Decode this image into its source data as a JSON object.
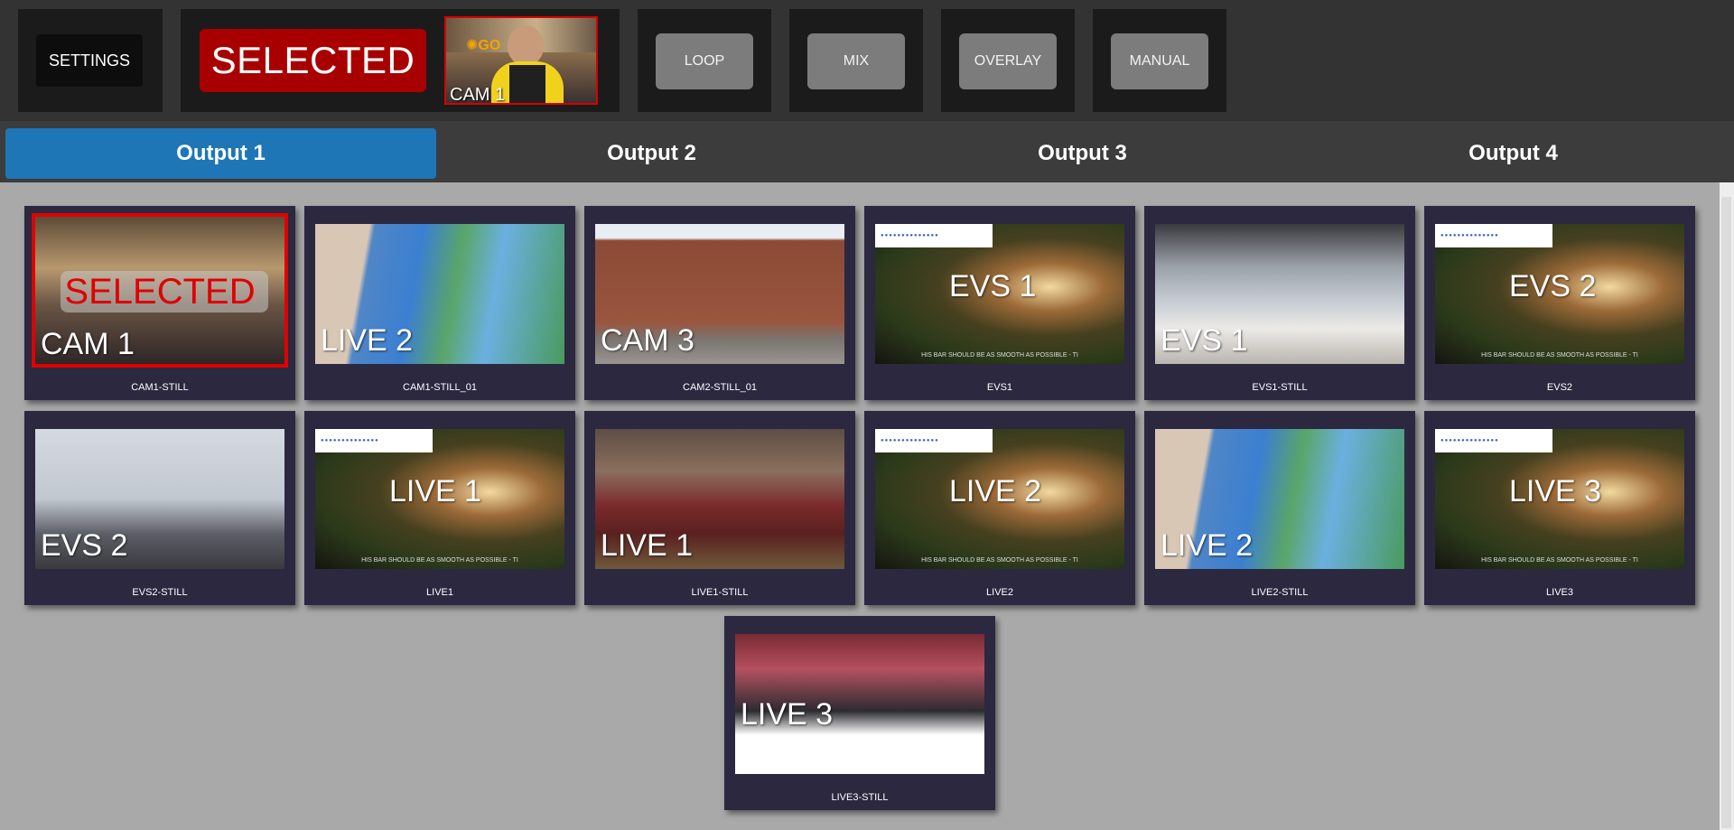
{
  "toolbar": {
    "settings_label": "SETTINGS",
    "selected_label": "SELECTED",
    "preview_label": "CAM 1",
    "modes": [
      "LOOP",
      "MIX",
      "OVERLAY",
      "MANUAL"
    ]
  },
  "tabs": [
    {
      "label": "Output 1",
      "active": true
    },
    {
      "label": "Output 2",
      "active": false
    },
    {
      "label": "Output 3",
      "active": false
    },
    {
      "label": "Output 4",
      "active": false
    }
  ],
  "grid": {
    "selected_overlay": "SELECTED",
    "ticker_text": "HIS BAR SHOULD BE AS SMOOTH AS POSSIBLE - TI",
    "clips": [
      {
        "caption": "CAM1-STILL",
        "overlay": "CAM 1",
        "scene": "studio-host",
        "selected": true
      },
      {
        "caption": "CAM1-STILL_01",
        "overlay": "LIVE 2",
        "scene": "weather-map",
        "selected": false
      },
      {
        "caption": "CAM2-STILL_01",
        "overlay": "CAM 3",
        "scene": "brick-building",
        "selected": false
      },
      {
        "caption": "EVS1",
        "overlay": "EVS 1",
        "scene": "evs-test",
        "selected": false
      },
      {
        "caption": "EVS1-STILL",
        "overlay": "EVS 1",
        "scene": "newsroom",
        "selected": false
      },
      {
        "caption": "EVS2",
        "overlay": "EVS 2",
        "scene": "evs-test",
        "selected": false
      },
      {
        "caption": "EVS2-STILL",
        "overlay": "EVS 2",
        "scene": "news-anchor",
        "selected": false
      },
      {
        "caption": "LIVE1",
        "overlay": "LIVE 1",
        "scene": "evs-test",
        "selected": false
      },
      {
        "caption": "LIVE1-STILL",
        "overlay": "LIVE 1",
        "scene": "talk-show",
        "selected": false
      },
      {
        "caption": "LIVE2",
        "overlay": "LIVE 2",
        "scene": "evs-test",
        "selected": false
      },
      {
        "caption": "LIVE2-STILL",
        "overlay": "LIVE 2",
        "scene": "weather-map",
        "selected": false
      },
      {
        "caption": "LIVE3",
        "overlay": "LIVE 3",
        "scene": "evs-test",
        "selected": false
      },
      {
        "caption": "LIVE3-STILL",
        "overlay": "LIVE 3",
        "scene": "news-graphic",
        "selected": false
      }
    ]
  },
  "colors": {
    "selected_red": "#a80000",
    "active_tab_blue": "#1e76b6",
    "card_bg": "#2b2840",
    "grid_bg": "#a9a9a9"
  }
}
